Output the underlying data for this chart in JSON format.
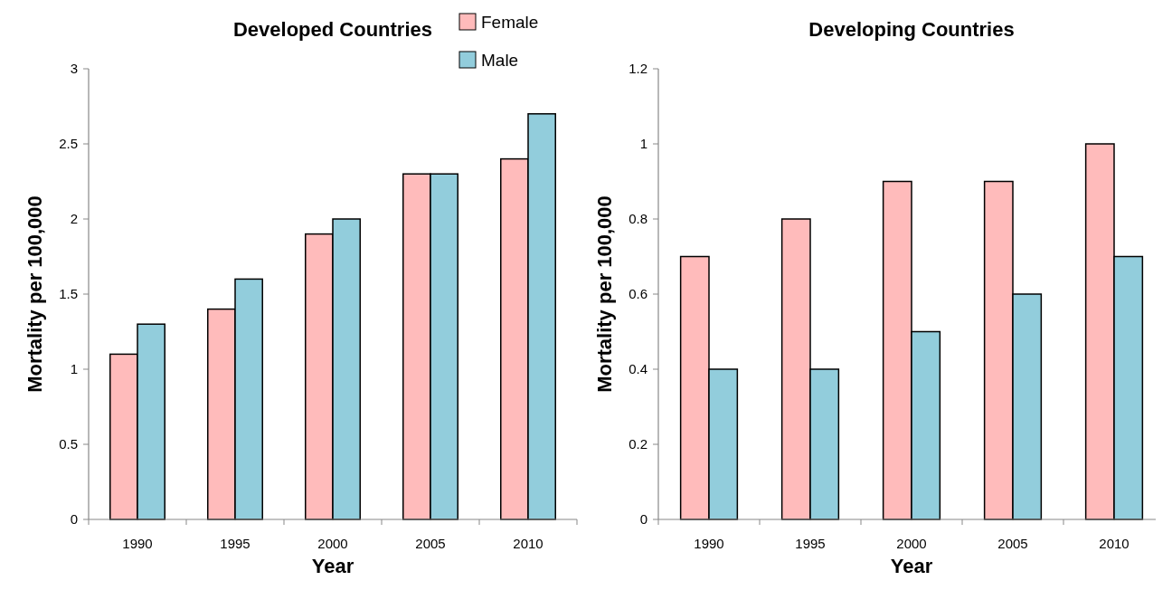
{
  "chart_data": [
    {
      "type": "bar",
      "title": "Developed Countries",
      "xlabel": "Year",
      "ylabel": "Mortality per 100,000",
      "categories": [
        "1990",
        "1995",
        "2000",
        "2005",
        "2010"
      ],
      "series": [
        {
          "name": "Female",
          "color": "#ffbbbb",
          "values": [
            1.1,
            1.4,
            1.9,
            2.3,
            2.4
          ]
        },
        {
          "name": "Male",
          "color": "#92cddc",
          "values": [
            1.3,
            1.6,
            2.0,
            2.3,
            2.7
          ]
        }
      ],
      "ylim": [
        0,
        3
      ],
      "yticks": [
        0,
        0.5,
        1,
        1.5,
        2,
        2.5,
        3
      ],
      "grid": false,
      "legend": "top right"
    },
    {
      "type": "bar",
      "title": "Developing Countries",
      "xlabel": "Year",
      "ylabel": "Mortality per 100,000",
      "categories": [
        "1990",
        "1995",
        "2000",
        "2005",
        "2010"
      ],
      "series": [
        {
          "color": "#ffbbbb",
          "values": [
            0.7,
            0.8,
            0.9,
            0.9,
            1.0
          ]
        },
        {
          "color": "#92cddc",
          "values": [
            0.4,
            0.4,
            0.5,
            0.6,
            0.7
          ]
        }
      ],
      "ylim": [
        0,
        1.2
      ],
      "yticks": [
        0,
        0.2,
        0.4,
        0.6,
        0.8,
        1,
        1.2
      ],
      "grid": false,
      "legend": false
    }
  ]
}
